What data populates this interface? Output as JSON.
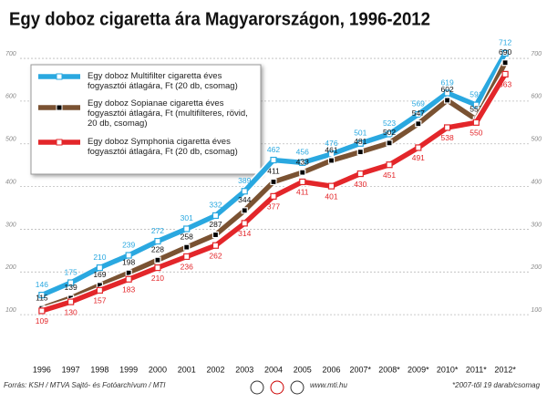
{
  "chart_data": {
    "type": "line",
    "title": "Egy doboz cigaretta ára Magyarországon, 1996-2012",
    "categories": [
      "1996",
      "1997",
      "1998",
      "1999",
      "2000",
      "2001",
      "2002",
      "2003",
      "2004",
      "2005",
      "2006",
      "2007*",
      "2008*",
      "2009*",
      "2010*",
      "2011*",
      "2012*"
    ],
    "series": [
      {
        "name": "Egy doboz Multifilter cigaretta éves fogyasztói átlagára, Ft (20 db, csomag)",
        "color": "#2aa8e0",
        "values": [
          146,
          175,
          210,
          239,
          272,
          301,
          332,
          389,
          462,
          456,
          476,
          501,
          523,
          569,
          619,
          591,
          712
        ]
      },
      {
        "name": "Egy doboz Sopianae cigaretta éves fogyasztói átlagára, Ft (multifilteres, rövid, 20 db, csomag)",
        "color": "#7a5232",
        "values": [
          115,
          139,
          169,
          198,
          228,
          258,
          287,
          344,
          411,
          433,
          461,
          481,
          502,
          547,
          602,
          557,
          690
        ]
      },
      {
        "name": "Egy doboz Symphonia cigaretta éves fogyasztói átlagára, Ft (20 db, csomag)",
        "color": "#e3262a",
        "values": [
          109,
          130,
          157,
          183,
          210,
          236,
          262,
          314,
          377,
          411,
          401,
          430,
          451,
          491,
          538,
          550,
          663
        ]
      }
    ],
    "ylim": [
      0,
      730
    ],
    "yticks": [
      100,
      200,
      300,
      400,
      500,
      600,
      700
    ],
    "grid": true,
    "source": "Forrás: KSH / MTVA Sajtó- és Fotóarchívum / MTI",
    "website": "www.mti.hu",
    "footnote": "*2007-től 19 darab/csomag"
  }
}
